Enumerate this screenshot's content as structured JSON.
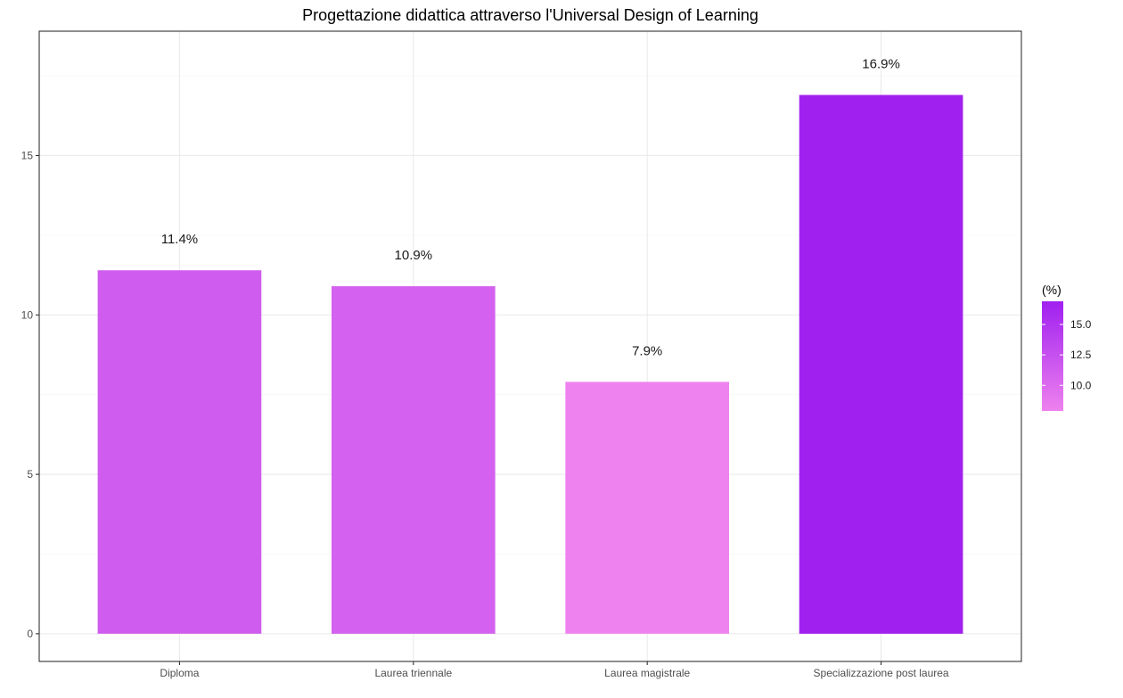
{
  "chart_data": {
    "type": "bar",
    "title": "Progettazione didattica attraverso l'Universal Design of Learning",
    "xlabel": "",
    "ylabel": "",
    "categories": [
      "Diploma",
      "Laurea triennale",
      "Laurea magistrale",
      "Specializzazione post laurea"
    ],
    "values": [
      11.4,
      10.9,
      7.9,
      16.9
    ],
    "data_labels": [
      "11.4%",
      "10.9%",
      "7.9%",
      "16.9%"
    ],
    "ylim": [
      -0.87,
      18.9
    ],
    "yticks": [
      0,
      5,
      10,
      15
    ],
    "ytick_labels": [
      "0",
      "5",
      "10",
      "15"
    ],
    "grid": true,
    "legend": {
      "title": "(%)",
      "position": "right",
      "range": [
        7.9,
        16.9
      ],
      "ticks": [
        10.0,
        12.5,
        15.0
      ],
      "tick_labels": [
        "10.0",
        "12.5",
        "15.0"
      ],
      "color_low": "#ee82ee",
      "color_high": "#a020f0"
    }
  }
}
